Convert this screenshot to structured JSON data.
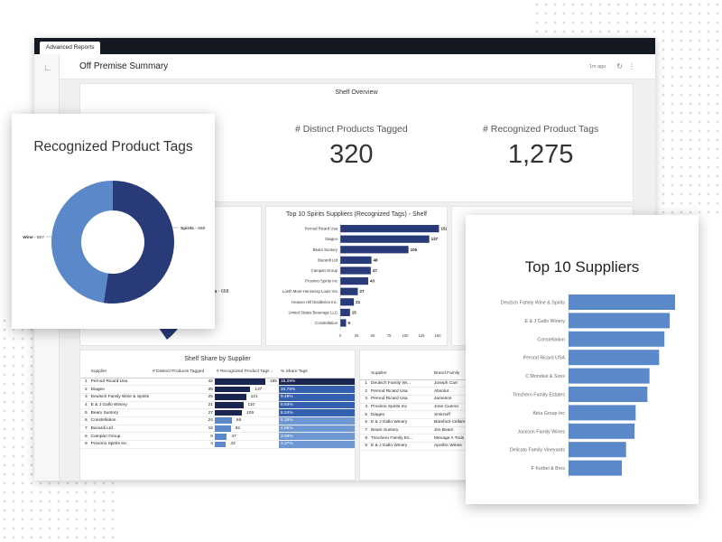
{
  "app": {
    "tab_label": "Advanced Reports"
  },
  "header": {
    "title": "Off Premise Summary",
    "updated": "1m ago",
    "refresh_icon": "refresh-icon",
    "more_icon": "more-vertical-icon"
  },
  "sidebar": {
    "icon": "line-chart-icon"
  },
  "shelf_overview": {
    "title": "Shelf Overview",
    "metrics": [
      {
        "label": "# Distinct Products Tagged",
        "value": "320"
      },
      {
        "label": "# Recognized Product Tags",
        "value": "1,275"
      }
    ]
  },
  "pie_tile": {
    "title_fragment": "on (Shelf)",
    "spirits_label": "Spirits",
    "spirits_value": "668"
  },
  "colors": {
    "dark_navy": "#283a78",
    "mid_blue": "#5b88c9",
    "table_navy": "#1a2550"
  },
  "chart_data": [
    {
      "type": "bar",
      "orientation": "horizontal",
      "title": "Top 10 Spirits Suppliers (Recognized Tags) - Shelf",
      "categories": [
        "Pernod Ricard Usa",
        "Diageo",
        "Beam Suntory",
        "Bacardi Ltd",
        "Campari Group",
        "Proximo Spirits Inc",
        "Loeth Moet-Hennessy Louis Vtn",
        "Heaven Hill Distilleries Inc.",
        "United States Beverage LLC",
        "Constellation"
      ],
      "values": [
        152,
        137,
        105,
        48,
        47,
        43,
        27,
        21,
        15,
        9
      ],
      "xlim": [
        0,
        150
      ],
      "xticks": [
        "0",
        "25",
        "50",
        "75",
        "100",
        "125",
        "150"
      ]
    },
    {
      "type": "pie",
      "title": "Recognized Product Tags",
      "labels": [
        "Spirits",
        "Wine"
      ],
      "values": [
        668,
        607
      ],
      "display_values": [
        "668",
        "607"
      ]
    },
    {
      "type": "bar",
      "orientation": "horizontal",
      "title": "Top 10 Suppliers",
      "categories": [
        "Deutsch Family Wine & Spirits",
        "E & J Gallo Winery",
        "Constellation",
        "Pernod Ricard USA",
        "C Mondavi & Sons",
        "Trinchero Family Estates",
        "Atria Group Inc",
        "Jackson Family Wines",
        "Delicato Family Vineyards",
        "F Korbel & Bros"
      ],
      "values": [
        100,
        95,
        90,
        85,
        76,
        74,
        63,
        62,
        54,
        50
      ]
    }
  ],
  "share_table": {
    "title": "Shelf Share by Supplier",
    "columns": [
      "",
      "Supplier",
      "# Distinct Products Tagged",
      "# Recognized Product Tags",
      "% Share Tags"
    ],
    "rows": [
      {
        "n": "1",
        "supplier": "Pernod Ricard Usa",
        "distinct": "42",
        "tags": "195",
        "tags_v": 195,
        "share": "15.29%"
      },
      {
        "n": "2",
        "supplier": "Diageo",
        "distinct": "35",
        "tags": "137",
        "tags_v": 137,
        "share": "10.75%"
      },
      {
        "n": "3",
        "supplier": "Deutsch Family Wine & Spirits",
        "distinct": "25",
        "tags": "121",
        "tags_v": 121,
        "share": "9.49%"
      },
      {
        "n": "4",
        "supplier": "E & J Gallo Winery",
        "distinct": "21",
        "tags": "110",
        "tags_v": 110,
        "share": "8.63%"
      },
      {
        "n": "5",
        "supplier": "Beam Suntory",
        "distinct": "27",
        "tags": "105",
        "tags_v": 105,
        "share": "8.24%"
      },
      {
        "n": "6",
        "supplier": "Constellation",
        "distinct": "24",
        "tags": "66",
        "tags_v": 66,
        "share": "5.18%"
      },
      {
        "n": "7",
        "supplier": "Bacardi Ltd",
        "distinct": "15",
        "tags": "62",
        "tags_v": 62,
        "share": "4.86%"
      },
      {
        "n": "8",
        "supplier": "Campari Group",
        "distinct": "8",
        "tags": "47",
        "tags_v": 47,
        "share": "3.69%"
      },
      {
        "n": "9",
        "supplier": "Proximo Spirits Inc",
        "distinct": "4",
        "tags": "43",
        "tags_v": 43,
        "share": "3.37%"
      }
    ]
  },
  "brand_table": {
    "columns": [
      "",
      "Supplier",
      "Brand Family"
    ],
    "rows": [
      {
        "n": "1",
        "supplier": "Deutsch Family Wi...",
        "brand": "Joseph Carr"
      },
      {
        "n": "2",
        "supplier": "Pernod Ricard Usa",
        "brand": "Absolut"
      },
      {
        "n": "3",
        "supplier": "Pernod Ricard Usa",
        "brand": "Jameson"
      },
      {
        "n": "4",
        "supplier": "Proximo Spirits Inc",
        "brand": "Jose Cuervo"
      },
      {
        "n": "5",
        "supplier": "Diageo",
        "brand": "Smirnoff"
      },
      {
        "n": "6",
        "supplier": "E & J Gallo Winery",
        "brand": "Barefoot Cellars"
      },
      {
        "n": "7",
        "supplier": "Beam Suntory",
        "brand": "Jim Beam"
      },
      {
        "n": "8",
        "supplier": "Trinchero Family Es...",
        "brand": "Menage A Trois"
      },
      {
        "n": "9",
        "supplier": "E & J Gallo Winery",
        "brand": "Apothic Wines"
      }
    ]
  }
}
